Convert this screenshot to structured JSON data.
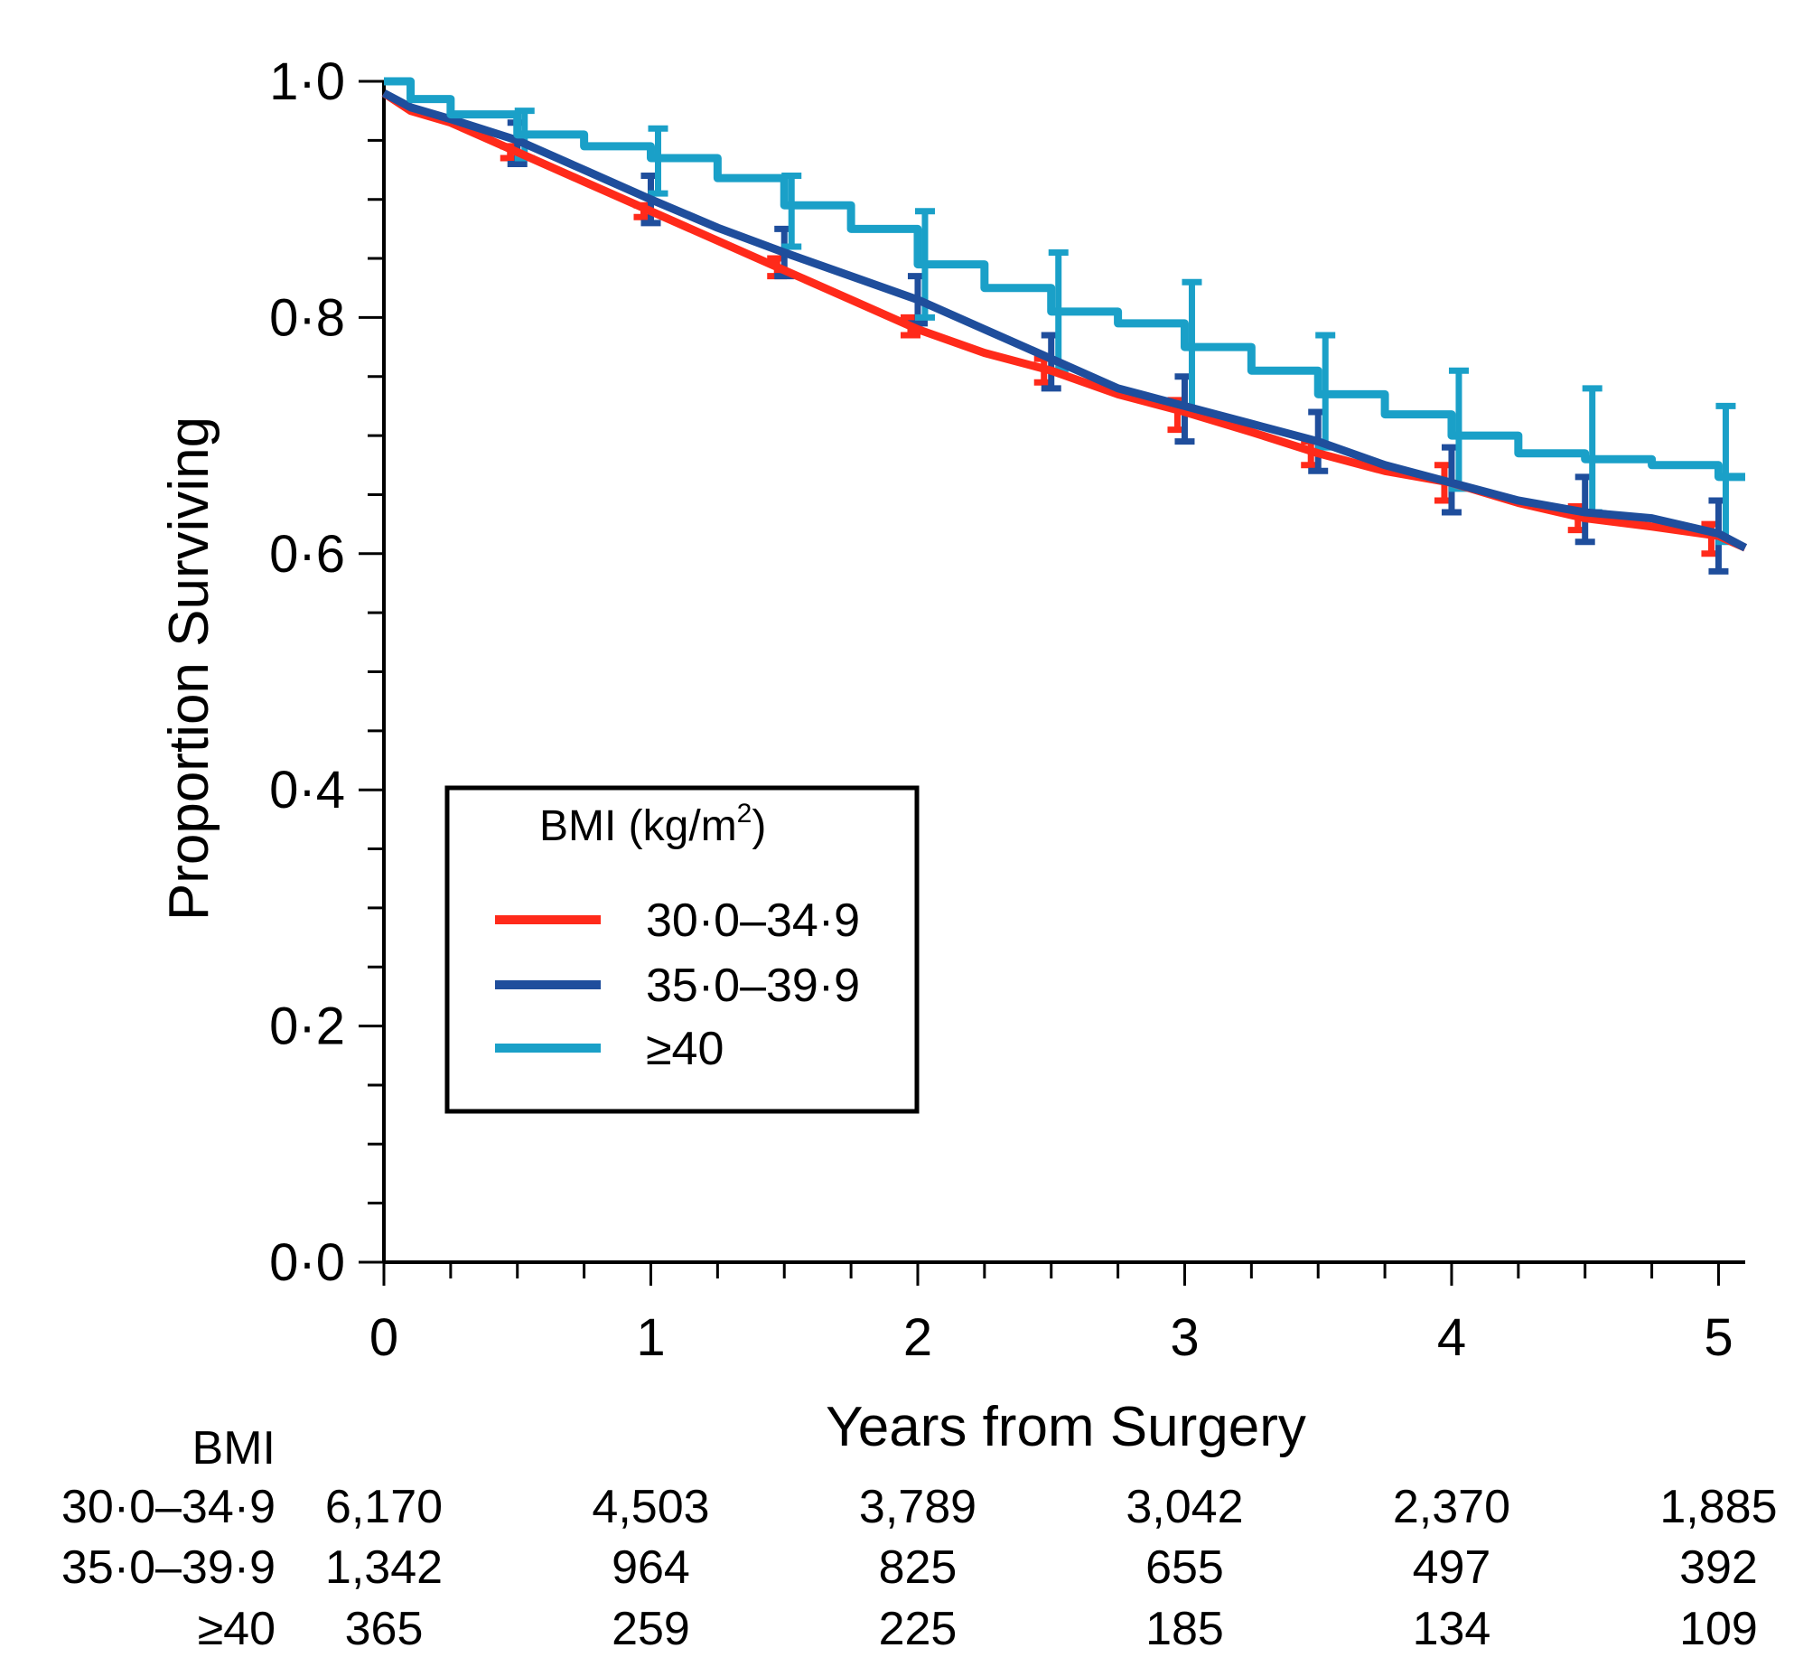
{
  "chart_data": {
    "type": "line",
    "title": "",
    "xlabel": "Years from Surgery",
    "ylabel": "Proportion Surviving",
    "xlim": [
      0,
      5.1
    ],
    "ylim": [
      0,
      1.0
    ],
    "x_ticks": [
      "0",
      "1",
      "2",
      "3",
      "4",
      "5"
    ],
    "x_tick_values": [
      0,
      1,
      2,
      3,
      4,
      5
    ],
    "y_ticks": [
      "0·0",
      "0·2",
      "0·4",
      "0·6",
      "0·8",
      "1·0"
    ],
    "y_tick_values": [
      0,
      0.2,
      0.4,
      0.6,
      0.8,
      1.0
    ],
    "legend": {
      "title": "BMI (kg/m",
      "title_sup": "2",
      "title_close": ")",
      "position": "center-left"
    },
    "series": [
      {
        "name": "30·0–34·9",
        "color": "#ff2a1a",
        "x": [
          0,
          0.1,
          0.25,
          0.5,
          0.75,
          1.0,
          1.25,
          1.5,
          1.75,
          2.0,
          2.25,
          2.5,
          2.75,
          3.0,
          3.25,
          3.5,
          3.75,
          4.0,
          4.25,
          4.5,
          4.75,
          5.0,
          5.1
        ],
        "y": [
          0.99,
          0.975,
          0.965,
          0.94,
          0.915,
          0.89,
          0.865,
          0.84,
          0.815,
          0.79,
          0.77,
          0.755,
          0.735,
          0.72,
          0.703,
          0.685,
          0.67,
          0.66,
          0.643,
          0.63,
          0.623,
          0.615,
          0.605
        ],
        "ci_x": [
          0.5,
          1.0,
          1.5,
          2.0,
          2.5,
          3.0,
          3.5,
          4.0,
          4.5,
          5.0
        ],
        "ci_lower": [
          0.935,
          0.885,
          0.835,
          0.785,
          0.745,
          0.705,
          0.675,
          0.645,
          0.62,
          0.6
        ],
        "ci_upper": [
          0.945,
          0.895,
          0.85,
          0.8,
          0.765,
          0.73,
          0.695,
          0.675,
          0.64,
          0.625
        ]
      },
      {
        "name": "35·0–39·9",
        "color": "#1f4e9c",
        "x": [
          0,
          0.1,
          0.25,
          0.5,
          0.75,
          1.0,
          1.25,
          1.5,
          1.75,
          2.0,
          2.25,
          2.5,
          2.75,
          3.0,
          3.25,
          3.5,
          3.75,
          4.0,
          4.25,
          4.5,
          4.75,
          5.0,
          5.1
        ],
        "y": [
          0.99,
          0.978,
          0.968,
          0.95,
          0.925,
          0.9,
          0.876,
          0.855,
          0.835,
          0.815,
          0.79,
          0.765,
          0.74,
          0.725,
          0.71,
          0.695,
          0.675,
          0.66,
          0.645,
          0.635,
          0.63,
          0.617,
          0.605
        ],
        "ci_x": [
          0.5,
          1.0,
          1.5,
          2.0,
          2.5,
          3.0,
          3.5,
          4.0,
          4.5,
          5.0
        ],
        "ci_lower": [
          0.93,
          0.88,
          0.835,
          0.795,
          0.74,
          0.695,
          0.67,
          0.635,
          0.61,
          0.585
        ],
        "ci_upper": [
          0.965,
          0.92,
          0.875,
          0.835,
          0.785,
          0.75,
          0.72,
          0.69,
          0.665,
          0.645
        ]
      },
      {
        "name": "≥40",
        "color": "#1aa0c8",
        "x": [
          0,
          0.1,
          0.25,
          0.5,
          0.75,
          1.0,
          1.25,
          1.5,
          1.75,
          2.0,
          2.25,
          2.5,
          2.75,
          3.0,
          3.25,
          3.5,
          3.75,
          4.0,
          4.25,
          4.5,
          4.75,
          5.0,
          5.1
        ],
        "y": [
          1.0,
          0.985,
          0.972,
          0.955,
          0.945,
          0.935,
          0.918,
          0.895,
          0.875,
          0.845,
          0.825,
          0.805,
          0.795,
          0.775,
          0.755,
          0.735,
          0.718,
          0.7,
          0.685,
          0.68,
          0.675,
          0.665,
          0.665
        ],
        "ci_x": [
          0.5,
          1.0,
          1.5,
          2.0,
          2.5,
          3.0,
          3.5,
          4.0,
          4.5,
          5.0
        ],
        "ci_lower": [
          0.935,
          0.905,
          0.86,
          0.8,
          0.755,
          0.72,
          0.69,
          0.655,
          0.635,
          0.61
        ],
        "ci_upper": [
          0.975,
          0.96,
          0.92,
          0.89,
          0.855,
          0.83,
          0.785,
          0.755,
          0.74,
          0.725
        ]
      }
    ],
    "at_risk": {
      "header": "BMI",
      "x": [
        0,
        1,
        2,
        3,
        4,
        5
      ],
      "rows": [
        {
          "label": "30·0–34·9",
          "values": [
            "6,170",
            "4,503",
            "3,789",
            "3,042",
            "2,370",
            "1,885"
          ]
        },
        {
          "label": "35·0–39·9",
          "values": [
            "1,342",
            "964",
            "825",
            "655",
            "497",
            "392"
          ]
        },
        {
          "label": "≥40",
          "values": [
            "365",
            "259",
            "225",
            "185",
            "134",
            "109"
          ]
        }
      ]
    }
  }
}
